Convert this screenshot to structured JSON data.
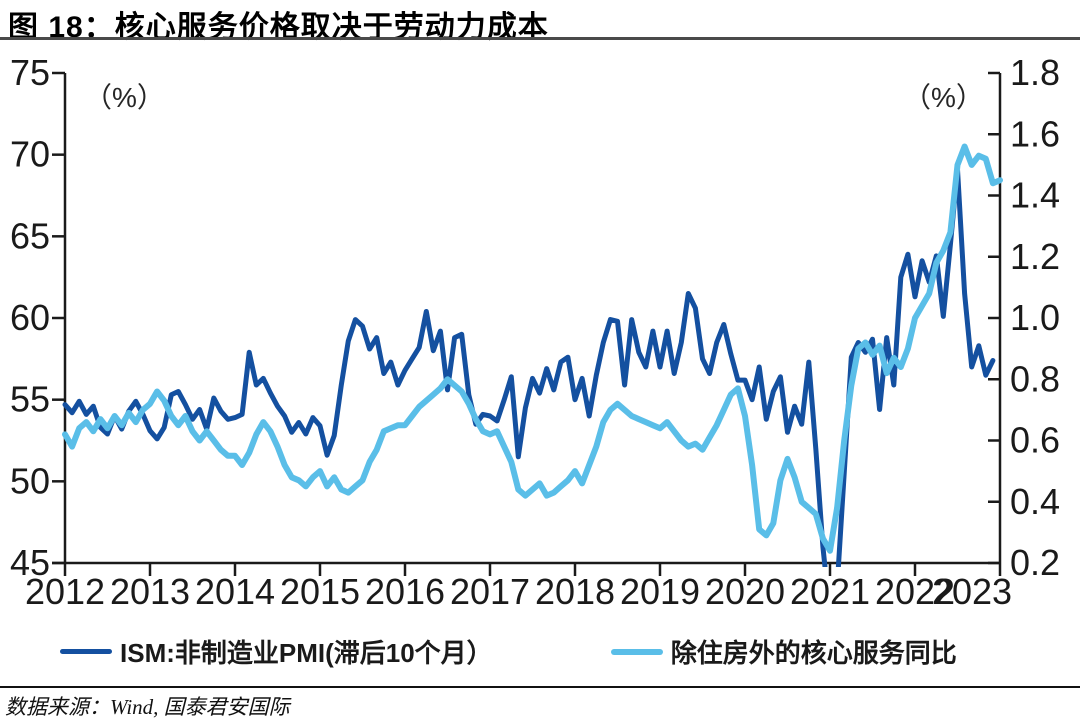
{
  "header": {
    "title": "图 18：核心服务价格取决于劳动力成本"
  },
  "footer": {
    "source": "数据来源：Wind, 国泰君安国际"
  },
  "chart_data": {
    "type": "line",
    "title": "图 18：核心服务价格取决于劳动力成本",
    "grid": false,
    "legend_position": "bottom",
    "x_axis": {
      "min": 2012,
      "max": 2023,
      "ticks": [
        2012,
        2013,
        2014,
        2015,
        2016,
        2017,
        2018,
        2019,
        2020,
        2021,
        2022,
        2023
      ],
      "tick_labels": [
        "2012",
        "2013",
        "2014",
        "2015",
        "2016",
        "2017",
        "2018",
        "2019",
        "2020",
        "2021",
        "2022",
        "2023"
      ]
    },
    "left_axis": {
      "label": "（%）",
      "min": 45,
      "max": 75,
      "ticks": [
        45,
        50,
        55,
        60,
        65,
        70,
        75
      ]
    },
    "right_axis": {
      "label": "（%）",
      "min": 0.2,
      "max": 1.8,
      "ticks": [
        0.2,
        0.4,
        0.6,
        0.8,
        1.0,
        1.2,
        1.4,
        1.6,
        1.8
      ]
    },
    "points_per_year": 12,
    "series": [
      {
        "name": "ISM:非制造业PMI(滞后10个月）",
        "axis": "left",
        "color": "#1450a0",
        "stroke_width": 5,
        "x_start": 2012.0,
        "values": [
          54.7,
          54.2,
          54.9,
          54.1,
          54.6,
          53.3,
          52.9,
          54.0,
          53.2,
          54.3,
          54.9,
          54.1,
          53.1,
          52.6,
          53.3,
          55.3,
          55.5,
          54.7,
          53.8,
          54.4,
          53.2,
          55.1,
          54.3,
          53.8,
          53.9,
          54.1,
          57.9,
          55.9,
          56.3,
          55.4,
          54.6,
          54.0,
          53.0,
          53.6,
          52.9,
          53.9,
          53.4,
          51.6,
          52.8,
          55.9,
          58.6,
          59.9,
          59.5,
          58.1,
          58.8,
          56.6,
          57.3,
          55.9,
          56.8,
          57.5,
          58.2,
          60.4,
          58.0,
          59.2,
          55.6,
          58.8,
          59.0,
          55.3,
          53.5,
          54.1,
          54.0,
          53.7,
          55.0,
          56.4,
          51.5,
          54.5,
          56.3,
          55.4,
          56.9,
          55.6,
          57.3,
          57.6,
          55.0,
          56.3,
          54.0,
          56.5,
          58.5,
          59.9,
          59.8,
          55.9,
          59.9,
          57.9,
          57.0,
          59.2,
          57.0,
          59.2,
          56.6,
          58.5,
          61.5,
          60.6,
          57.5,
          56.6,
          58.5,
          59.6,
          57.8,
          56.2,
          56.2,
          55.0,
          57.0,
          53.8,
          55.5,
          56.4,
          53.0,
          54.6,
          53.5,
          57.3,
          52.0,
          46.0,
          41.8,
          43.5,
          50.5,
          57.6,
          58.5,
          57.9,
          58.7,
          54.4,
          58.8,
          55.9,
          62.5,
          63.9,
          61.3,
          63.5,
          62.2,
          63.8,
          60.1,
          64.5,
          69.1,
          61.5,
          57.0,
          58.3,
          56.5,
          57.4
        ]
      },
      {
        "name": "除住房外的核心服务同比",
        "axis": "right",
        "color": "#5abee8",
        "stroke_width": 6,
        "x_start": 2012.0,
        "values": [
          0.62,
          0.58,
          0.64,
          0.66,
          0.63,
          0.67,
          0.64,
          0.68,
          0.65,
          0.69,
          0.66,
          0.7,
          0.72,
          0.76,
          0.73,
          0.68,
          0.65,
          0.68,
          0.63,
          0.6,
          0.63,
          0.6,
          0.57,
          0.55,
          0.55,
          0.52,
          0.56,
          0.62,
          0.66,
          0.63,
          0.58,
          0.52,
          0.48,
          0.47,
          0.45,
          0.48,
          0.5,
          0.45,
          0.48,
          0.44,
          0.43,
          0.45,
          0.47,
          0.53,
          0.57,
          0.63,
          0.64,
          0.65,
          0.65,
          0.68,
          0.71,
          0.73,
          0.75,
          0.77,
          0.8,
          0.78,
          0.76,
          0.72,
          0.67,
          0.63,
          0.62,
          0.63,
          0.58,
          0.53,
          0.44,
          0.42,
          0.44,
          0.46,
          0.42,
          0.43,
          0.45,
          0.47,
          0.5,
          0.46,
          0.52,
          0.58,
          0.66,
          0.7,
          0.72,
          0.7,
          0.68,
          0.67,
          0.66,
          0.65,
          0.64,
          0.66,
          0.63,
          0.6,
          0.58,
          0.59,
          0.57,
          0.61,
          0.65,
          0.7,
          0.75,
          0.77,
          0.68,
          0.52,
          0.31,
          0.29,
          0.33,
          0.47,
          0.54,
          0.48,
          0.4,
          0.38,
          0.36,
          0.28,
          0.24,
          0.38,
          0.6,
          0.78,
          0.9,
          0.92,
          0.88,
          0.91,
          0.82,
          0.87,
          0.84,
          0.9,
          1.0,
          1.04,
          1.08,
          1.18,
          1.22,
          1.28,
          1.5,
          1.56,
          1.5,
          1.53,
          1.52,
          1.44,
          1.45
        ]
      }
    ]
  }
}
